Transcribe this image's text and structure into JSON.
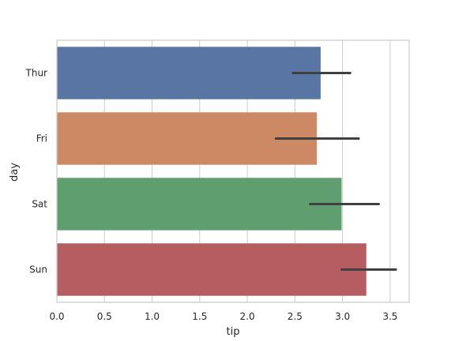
{
  "chart_data": {
    "type": "bar",
    "orientation": "horizontal",
    "xlabel": "tip",
    "ylabel": "day",
    "xlim": [
      0,
      3.7
    ],
    "xticks": [
      "0.0",
      "0.5",
      "1.0",
      "1.5",
      "2.0",
      "2.5",
      "3.0",
      "3.5"
    ],
    "grid": true,
    "categories": [
      "Thur",
      "Fri",
      "Sat",
      "Sun"
    ],
    "values": [
      2.77,
      2.73,
      2.99,
      3.25
    ],
    "error_low": [
      2.48,
      2.3,
      2.66,
      2.99
    ],
    "error_high": [
      3.08,
      3.17,
      3.38,
      3.56
    ],
    "colors": [
      "#5875a4",
      "#cc8963",
      "#5f9e6e",
      "#b55d60"
    ],
    "error_color": "#404040"
  }
}
